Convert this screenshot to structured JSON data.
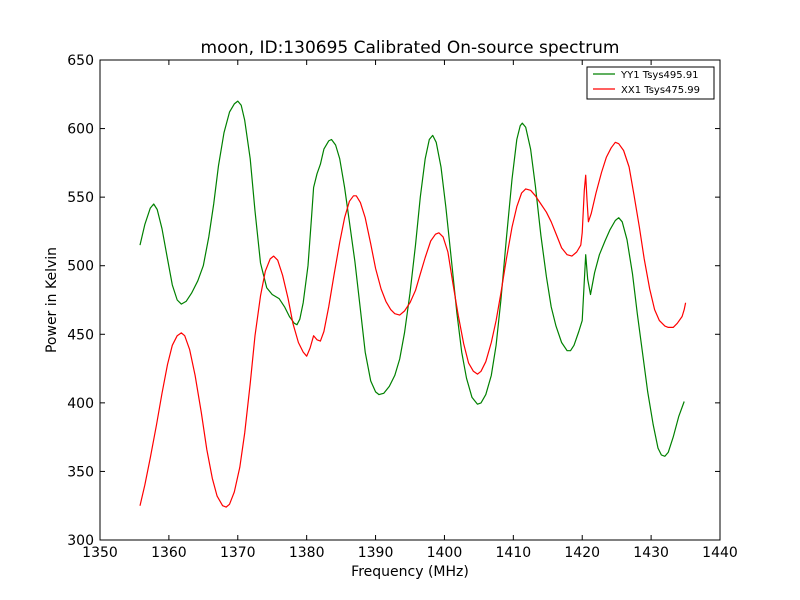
{
  "chart_data": {
    "type": "line",
    "title": "moon, ID:130695 Calibrated On-source spectrum",
    "xlabel": "Frequency (MHz)",
    "ylabel": "Power in Kelvin",
    "xlim": [
      1350,
      1440
    ],
    "ylim": [
      300,
      650
    ],
    "xticks": [
      1350,
      1360,
      1370,
      1380,
      1390,
      1400,
      1410,
      1420,
      1430,
      1440
    ],
    "yticks": [
      300,
      350,
      400,
      450,
      500,
      550,
      600,
      650
    ],
    "grid": false,
    "legend_position": "top-right",
    "series": [
      {
        "name": "YY1 Tsys495.91",
        "color": "#008000",
        "points": [
          [
            1355.8,
            515
          ],
          [
            1356.5,
            530
          ],
          [
            1357.3,
            542
          ],
          [
            1357.8,
            545
          ],
          [
            1358.3,
            541
          ],
          [
            1359.0,
            527
          ],
          [
            1359.8,
            505
          ],
          [
            1360.5,
            486
          ],
          [
            1361.2,
            475
          ],
          [
            1361.8,
            472
          ],
          [
            1362.5,
            474
          ],
          [
            1363.3,
            480
          ],
          [
            1364.2,
            489
          ],
          [
            1365.0,
            500
          ],
          [
            1365.8,
            521
          ],
          [
            1366.5,
            545
          ],
          [
            1367.2,
            573
          ],
          [
            1368.0,
            597
          ],
          [
            1368.8,
            612
          ],
          [
            1369.5,
            618
          ],
          [
            1370.0,
            620
          ],
          [
            1370.5,
            617
          ],
          [
            1371.0,
            606
          ],
          [
            1371.8,
            578
          ],
          [
            1372.5,
            540
          ],
          [
            1373.3,
            502
          ],
          [
            1374.2,
            484
          ],
          [
            1375.0,
            479
          ],
          [
            1376.0,
            476
          ],
          [
            1376.8,
            470
          ],
          [
            1377.5,
            463
          ],
          [
            1378.2,
            458
          ],
          [
            1378.6,
            457
          ],
          [
            1379.0,
            461
          ],
          [
            1379.5,
            473
          ],
          [
            1380.2,
            500
          ],
          [
            1380.7,
            535
          ],
          [
            1381.0,
            557
          ],
          [
            1381.5,
            567
          ],
          [
            1382.0,
            574
          ],
          [
            1382.5,
            585
          ],
          [
            1383.2,
            591
          ],
          [
            1383.6,
            592
          ],
          [
            1384.2,
            588
          ],
          [
            1384.8,
            578
          ],
          [
            1385.5,
            557
          ],
          [
            1386.2,
            532
          ],
          [
            1387.0,
            503
          ],
          [
            1387.8,
            468
          ],
          [
            1388.5,
            437
          ],
          [
            1389.3,
            416
          ],
          [
            1390.0,
            408
          ],
          [
            1390.5,
            406
          ],
          [
            1391.2,
            407
          ],
          [
            1392.0,
            412
          ],
          [
            1392.8,
            420
          ],
          [
            1393.5,
            432
          ],
          [
            1394.2,
            451
          ],
          [
            1395.0,
            480
          ],
          [
            1395.8,
            515
          ],
          [
            1396.5,
            550
          ],
          [
            1397.2,
            578
          ],
          [
            1397.8,
            592
          ],
          [
            1398.3,
            595
          ],
          [
            1398.8,
            590
          ],
          [
            1399.5,
            572
          ],
          [
            1400.2,
            543
          ],
          [
            1401.0,
            505
          ],
          [
            1401.8,
            466
          ],
          [
            1402.5,
            437
          ],
          [
            1403.2,
            418
          ],
          [
            1404.0,
            404
          ],
          [
            1404.8,
            399
          ],
          [
            1405.3,
            400
          ],
          [
            1406.0,
            406
          ],
          [
            1406.8,
            420
          ],
          [
            1407.5,
            442
          ],
          [
            1408.2,
            475
          ],
          [
            1409.0,
            520
          ],
          [
            1409.8,
            563
          ],
          [
            1410.5,
            592
          ],
          [
            1411.0,
            602
          ],
          [
            1411.3,
            604
          ],
          [
            1411.8,
            601
          ],
          [
            1412.5,
            585
          ],
          [
            1413.2,
            558
          ],
          [
            1414.0,
            522
          ],
          [
            1414.8,
            492
          ],
          [
            1415.5,
            470
          ],
          [
            1416.2,
            456
          ],
          [
            1417.0,
            444
          ],
          [
            1417.8,
            438
          ],
          [
            1418.3,
            438
          ],
          [
            1418.8,
            442
          ],
          [
            1419.5,
            452
          ],
          [
            1420.0,
            460
          ],
          [
            1420.5,
            508
          ],
          [
            1420.8,
            490
          ],
          [
            1421.2,
            479
          ],
          [
            1421.8,
            495
          ],
          [
            1422.5,
            508
          ],
          [
            1423.3,
            518
          ],
          [
            1424.0,
            526
          ],
          [
            1424.8,
            533
          ],
          [
            1425.3,
            535
          ],
          [
            1425.8,
            532
          ],
          [
            1426.5,
            519
          ],
          [
            1427.3,
            494
          ],
          [
            1428.0,
            465
          ],
          [
            1428.8,
            435
          ],
          [
            1429.5,
            408
          ],
          [
            1430.3,
            384
          ],
          [
            1431.0,
            367
          ],
          [
            1431.5,
            362
          ],
          [
            1432.0,
            361
          ],
          [
            1432.5,
            364
          ],
          [
            1433.2,
            375
          ],
          [
            1434.0,
            390
          ],
          [
            1434.8,
            401
          ]
        ]
      },
      {
        "name": "XX1 Tsys475.99",
        "color": "#ff0000",
        "points": [
          [
            1355.8,
            325
          ],
          [
            1356.5,
            340
          ],
          [
            1357.3,
            360
          ],
          [
            1358.2,
            384
          ],
          [
            1359.0,
            407
          ],
          [
            1359.8,
            428
          ],
          [
            1360.5,
            442
          ],
          [
            1361.2,
            449
          ],
          [
            1361.8,
            451
          ],
          [
            1362.3,
            449
          ],
          [
            1363.0,
            439
          ],
          [
            1363.8,
            420
          ],
          [
            1364.7,
            393
          ],
          [
            1365.5,
            366
          ],
          [
            1366.3,
            345
          ],
          [
            1367.0,
            332
          ],
          [
            1367.8,
            325
          ],
          [
            1368.3,
            324
          ],
          [
            1368.8,
            326
          ],
          [
            1369.5,
            335
          ],
          [
            1370.3,
            353
          ],
          [
            1371.0,
            378
          ],
          [
            1371.8,
            414
          ],
          [
            1372.5,
            449
          ],
          [
            1373.3,
            478
          ],
          [
            1374.0,
            496
          ],
          [
            1374.7,
            505
          ],
          [
            1375.2,
            507
          ],
          [
            1375.8,
            504
          ],
          [
            1376.5,
            493
          ],
          [
            1377.3,
            476
          ],
          [
            1378.0,
            458
          ],
          [
            1378.8,
            444
          ],
          [
            1379.5,
            437
          ],
          [
            1380.0,
            434
          ],
          [
            1380.5,
            440
          ],
          [
            1381.0,
            449
          ],
          [
            1381.5,
            446
          ],
          [
            1382.0,
            445
          ],
          [
            1382.5,
            452
          ],
          [
            1383.2,
            470
          ],
          [
            1384.0,
            494
          ],
          [
            1384.8,
            517
          ],
          [
            1385.5,
            535
          ],
          [
            1386.2,
            547
          ],
          [
            1386.8,
            551
          ],
          [
            1387.2,
            551
          ],
          [
            1387.8,
            546
          ],
          [
            1388.5,
            535
          ],
          [
            1389.3,
            516
          ],
          [
            1390.0,
            498
          ],
          [
            1390.8,
            483
          ],
          [
            1391.5,
            474
          ],
          [
            1392.2,
            468
          ],
          [
            1392.8,
            465
          ],
          [
            1393.5,
            464
          ],
          [
            1394.2,
            467
          ],
          [
            1395.0,
            473
          ],
          [
            1395.8,
            482
          ],
          [
            1396.5,
            494
          ],
          [
            1397.2,
            506
          ],
          [
            1398.0,
            518
          ],
          [
            1398.7,
            523
          ],
          [
            1399.2,
            524
          ],
          [
            1399.8,
            521
          ],
          [
            1400.5,
            510
          ],
          [
            1401.2,
            488
          ],
          [
            1402.0,
            464
          ],
          [
            1402.8,
            443
          ],
          [
            1403.5,
            429
          ],
          [
            1404.2,
            423
          ],
          [
            1404.8,
            421
          ],
          [
            1405.3,
            423
          ],
          [
            1406.0,
            430
          ],
          [
            1406.8,
            444
          ],
          [
            1407.5,
            460
          ],
          [
            1408.2,
            480
          ],
          [
            1409.0,
            505
          ],
          [
            1409.8,
            528
          ],
          [
            1410.5,
            543
          ],
          [
            1411.2,
            553
          ],
          [
            1411.8,
            556
          ],
          [
            1412.5,
            555
          ],
          [
            1413.2,
            551
          ],
          [
            1414.0,
            545
          ],
          [
            1414.8,
            539
          ],
          [
            1415.5,
            532
          ],
          [
            1416.3,
            522
          ],
          [
            1417.0,
            513
          ],
          [
            1417.8,
            508
          ],
          [
            1418.5,
            507
          ],
          [
            1419.2,
            510
          ],
          [
            1419.8,
            515
          ],
          [
            1420.0,
            524
          ],
          [
            1420.3,
            555
          ],
          [
            1420.5,
            566
          ],
          [
            1420.7,
            548
          ],
          [
            1420.9,
            532
          ],
          [
            1421.3,
            538
          ],
          [
            1422.0,
            553
          ],
          [
            1422.8,
            568
          ],
          [
            1423.5,
            579
          ],
          [
            1424.2,
            586
          ],
          [
            1424.8,
            590
          ],
          [
            1425.3,
            589
          ],
          [
            1426.0,
            584
          ],
          [
            1426.8,
            572
          ],
          [
            1427.5,
            552
          ],
          [
            1428.3,
            528
          ],
          [
            1429.0,
            505
          ],
          [
            1429.8,
            483
          ],
          [
            1430.5,
            468
          ],
          [
            1431.2,
            460
          ],
          [
            1432.0,
            456
          ],
          [
            1432.5,
            455
          ],
          [
            1433.2,
            455
          ],
          [
            1433.8,
            458
          ],
          [
            1434.5,
            463
          ],
          [
            1434.8,
            468
          ],
          [
            1435.0,
            473
          ]
        ]
      }
    ]
  }
}
